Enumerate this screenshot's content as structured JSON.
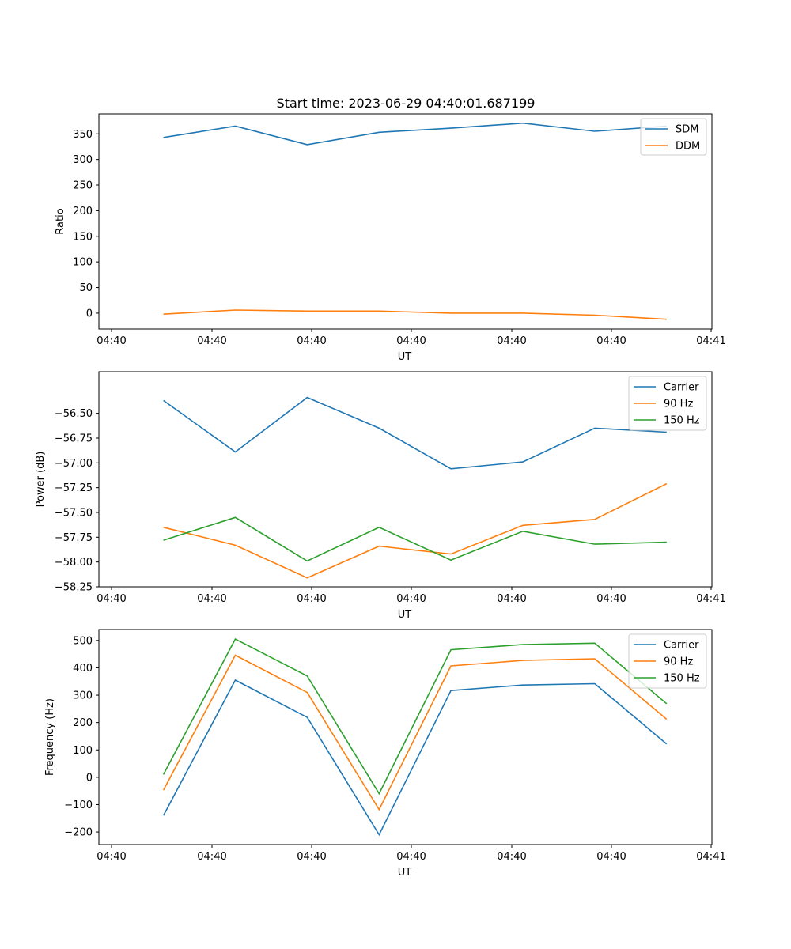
{
  "figure": {
    "title": "Start time: 2023-06-29 04:40:01.687199"
  },
  "chart_data": [
    {
      "type": "line",
      "xlabel": "UT",
      "ylabel": "Ratio",
      "x_tick_labels": [
        "04:40",
        "04:40",
        "04:40",
        "04:40",
        "04:40",
        "04:40",
        "04:41"
      ],
      "ylim": [
        -31,
        389
      ],
      "y_ticks": [
        0,
        50,
        100,
        150,
        200,
        250,
        300,
        350
      ],
      "y_tick_labels": [
        "0",
        "50",
        "100",
        "150",
        "200",
        "250",
        "300",
        "350"
      ],
      "legend_position": "upper-right",
      "grid": false,
      "series": [
        {
          "name": "SDM",
          "color": "#1f77b4",
          "values": [
            343,
            365,
            329,
            353,
            361,
            371,
            355,
            365
          ]
        },
        {
          "name": "DDM",
          "color": "#ff7f0e",
          "values": [
            -2,
            6,
            4,
            4,
            0,
            0,
            -4,
            -12
          ]
        }
      ]
    },
    {
      "type": "line",
      "xlabel": "UT",
      "ylabel": "Power (dB)",
      "x_tick_labels": [
        "04:40",
        "04:40",
        "04:40",
        "04:40",
        "04:40",
        "04:40",
        "04:41"
      ],
      "ylim": [
        -58.25,
        -56.08
      ],
      "y_ticks": [
        -58.25,
        -58.0,
        -57.75,
        -57.5,
        -57.25,
        -57.0,
        -56.75,
        -56.5
      ],
      "y_tick_labels": [
        "−58.25",
        "−58.00",
        "−57.75",
        "−57.50",
        "−57.25",
        "−57.00",
        "−56.75",
        "−56.50"
      ],
      "legend_position": "upper-right",
      "grid": false,
      "series": [
        {
          "name": "Carrier",
          "color": "#1f77b4",
          "values": [
            -56.37,
            -56.89,
            -56.34,
            -56.65,
            -57.06,
            -56.99,
            -56.65,
            -56.69
          ]
        },
        {
          "name": "90 Hz",
          "color": "#ff7f0e",
          "values": [
            -57.65,
            -57.83,
            -58.16,
            -57.84,
            -57.92,
            -57.63,
            -57.57,
            -57.21
          ]
        },
        {
          "name": "150 Hz",
          "color": "#2ca02c",
          "values": [
            -57.78,
            -57.55,
            -57.99,
            -57.65,
            -57.98,
            -57.69,
            -57.82,
            -57.8
          ]
        }
      ]
    },
    {
      "type": "line",
      "xlabel": "UT",
      "ylabel": "Frequency (Hz)",
      "x_tick_labels": [
        "04:40",
        "04:40",
        "04:40",
        "04:40",
        "04:40",
        "04:40",
        "04:41"
      ],
      "ylim": [
        -246,
        540
      ],
      "y_ticks": [
        -200,
        -100,
        0,
        100,
        200,
        300,
        400,
        500
      ],
      "y_tick_labels": [
        "−200",
        "−100",
        "0",
        "100",
        "200",
        "300",
        "400",
        "500"
      ],
      "legend_position": "upper-right",
      "grid": false,
      "series": [
        {
          "name": "Carrier",
          "color": "#1f77b4",
          "values": [
            -140,
            355,
            219,
            -210,
            317,
            337,
            342,
            122
          ]
        },
        {
          "name": "90 Hz",
          "color": "#ff7f0e",
          "values": [
            -47,
            446,
            310,
            -118,
            407,
            427,
            433,
            212
          ]
        },
        {
          "name": "150 Hz",
          "color": "#2ca02c",
          "values": [
            10,
            505,
            370,
            -60,
            466,
            485,
            490,
            269
          ]
        }
      ]
    }
  ]
}
